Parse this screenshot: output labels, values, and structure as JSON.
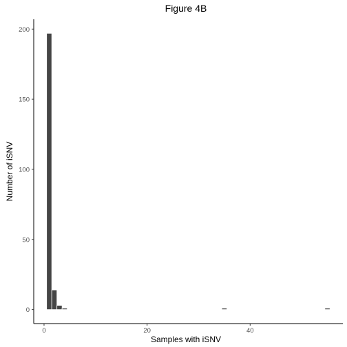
{
  "chart_data": {
    "type": "bar",
    "title": "Figure 4B",
    "xlabel": "Samples with iSNV",
    "ylabel": "Number of iSNV",
    "x": [
      1,
      2,
      3,
      4,
      35,
      55
    ],
    "values": [
      197,
      14,
      3,
      1,
      1,
      1
    ],
    "bin_width": 1,
    "xlim": [
      -2,
      58
    ],
    "ylim": [
      -10,
      207
    ],
    "xticks": [
      0,
      20,
      40
    ],
    "yticks": [
      0,
      50,
      100,
      150,
      200
    ],
    "bar_color": "#454545",
    "bar_outline": "#ffffff",
    "grid": false
  }
}
